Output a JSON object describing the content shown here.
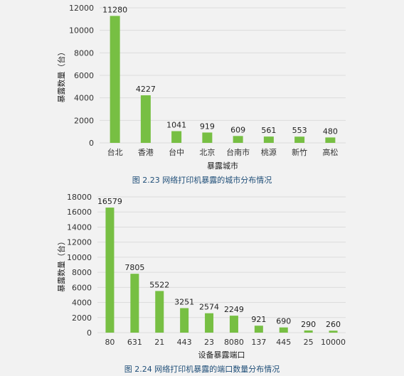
{
  "colors": {
    "bar": "#77bf43",
    "grid": "#dcdcdc",
    "caption": "#1f4e78"
  },
  "chart_data": [
    {
      "type": "bar",
      "title": "",
      "caption": "图 2.23  网络打印机暴露的城市分布情况",
      "xlabel": "暴露城市",
      "ylabel": "暴露数量（台）",
      "categories": [
        "台北",
        "香港",
        "台中",
        "北京",
        "台南市",
        "桃源",
        "新竹",
        "高松"
      ],
      "values": [
        11280,
        4227,
        1041,
        919,
        609,
        561,
        553,
        480
      ],
      "ylim": [
        0,
        12000
      ],
      "yticks": [
        0,
        2000,
        4000,
        6000,
        8000,
        10000,
        12000
      ],
      "grid": true
    },
    {
      "type": "bar",
      "title": "",
      "caption": "图 2.24  网络打印机暴露的端口数量分布情况",
      "xlabel": "设备暴露端口",
      "ylabel": "暴露数量（台）",
      "categories": [
        "80",
        "631",
        "21",
        "443",
        "23",
        "8080",
        "137",
        "445",
        "25",
        "10000"
      ],
      "values": [
        16579,
        7805,
        5522,
        3251,
        2574,
        2249,
        921,
        690,
        290,
        260
      ],
      "ylim": [
        0,
        18000
      ],
      "yticks": [
        0,
        2000,
        4000,
        6000,
        8000,
        10000,
        12000,
        14000,
        16000,
        18000
      ],
      "grid": true
    }
  ]
}
